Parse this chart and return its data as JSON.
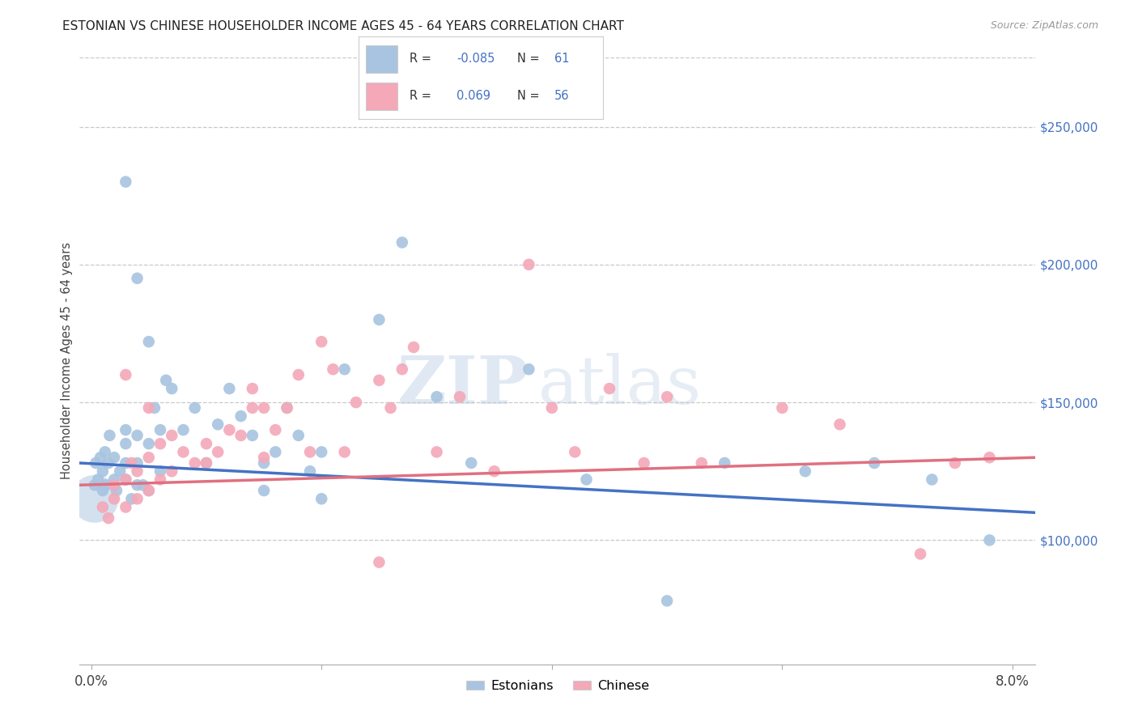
{
  "title": "ESTONIAN VS CHINESE HOUSEHOLDER INCOME AGES 45 - 64 YEARS CORRELATION CHART",
  "source": "Source: ZipAtlas.com",
  "ylabel": "Householder Income Ages 45 - 64 years",
  "xlim": [
    -0.001,
    0.082
  ],
  "ylim": [
    55000,
    275000
  ],
  "xticks": [
    0.0,
    0.02,
    0.04,
    0.06,
    0.08
  ],
  "xticklabels_show": [
    "0.0%",
    "8.0%"
  ],
  "xticklabels_pos": [
    0.0,
    0.08
  ],
  "yticks": [
    100000,
    150000,
    200000,
    250000
  ],
  "yticklabels": [
    "$100,000",
    "$150,000",
    "$200,000",
    "$250,000"
  ],
  "legend_r_est": "-0.085",
  "legend_n_est": "61",
  "legend_r_chi": "0.069",
  "legend_n_chi": "56",
  "estonian_color": "#a8c4e0",
  "chinese_color": "#f4a8b8",
  "line_color_est": "#4472c4",
  "line_color_chi": "#e07080",
  "grid_color": "#c8c8c8",
  "bg_color": "#ffffff",
  "watermark_zip": "ZIP",
  "watermark_atlas": "atlas",
  "estonian_x": [
    0.0003,
    0.0004,
    0.0006,
    0.0008,
    0.001,
    0.001,
    0.0012,
    0.0013,
    0.0015,
    0.0016,
    0.002,
    0.002,
    0.0022,
    0.0025,
    0.003,
    0.003,
    0.003,
    0.003,
    0.0035,
    0.004,
    0.004,
    0.004,
    0.0045,
    0.005,
    0.005,
    0.0055,
    0.006,
    0.006,
    0.0065,
    0.007,
    0.008,
    0.009,
    0.01,
    0.011,
    0.012,
    0.013,
    0.014,
    0.015,
    0.016,
    0.017,
    0.018,
    0.019,
    0.02,
    0.022,
    0.025,
    0.027,
    0.03,
    0.033,
    0.038,
    0.043,
    0.05,
    0.055,
    0.062,
    0.068,
    0.073,
    0.078,
    0.003,
    0.004,
    0.005,
    0.015,
    0.02
  ],
  "estonian_y": [
    120000,
    128000,
    122000,
    130000,
    118000,
    125000,
    132000,
    120000,
    128000,
    138000,
    122000,
    130000,
    118000,
    125000,
    122000,
    128000,
    135000,
    140000,
    115000,
    120000,
    128000,
    138000,
    120000,
    118000,
    135000,
    148000,
    125000,
    140000,
    158000,
    155000,
    140000,
    148000,
    128000,
    142000,
    155000,
    145000,
    138000,
    128000,
    132000,
    148000,
    138000,
    125000,
    132000,
    162000,
    180000,
    208000,
    152000,
    128000,
    162000,
    122000,
    78000,
    128000,
    125000,
    128000,
    122000,
    100000,
    230000,
    195000,
    172000,
    118000,
    115000
  ],
  "chinese_x": [
    0.001,
    0.0015,
    0.002,
    0.002,
    0.003,
    0.003,
    0.0035,
    0.004,
    0.004,
    0.005,
    0.005,
    0.006,
    0.006,
    0.007,
    0.008,
    0.009,
    0.01,
    0.011,
    0.012,
    0.013,
    0.014,
    0.014,
    0.015,
    0.016,
    0.017,
    0.018,
    0.019,
    0.02,
    0.021,
    0.022,
    0.023,
    0.025,
    0.026,
    0.027,
    0.028,
    0.03,
    0.032,
    0.035,
    0.038,
    0.04,
    0.042,
    0.045,
    0.048,
    0.05,
    0.053,
    0.06,
    0.065,
    0.072,
    0.075,
    0.003,
    0.005,
    0.007,
    0.01,
    0.015,
    0.025,
    0.078
  ],
  "chinese_y": [
    112000,
    108000,
    115000,
    120000,
    112000,
    122000,
    128000,
    115000,
    125000,
    118000,
    130000,
    122000,
    135000,
    125000,
    132000,
    128000,
    135000,
    132000,
    140000,
    138000,
    148000,
    155000,
    130000,
    140000,
    148000,
    160000,
    132000,
    172000,
    162000,
    132000,
    150000,
    158000,
    148000,
    162000,
    170000,
    132000,
    152000,
    125000,
    200000,
    148000,
    132000,
    155000,
    128000,
    152000,
    128000,
    148000,
    142000,
    95000,
    128000,
    160000,
    148000,
    138000,
    128000,
    148000,
    92000,
    130000
  ]
}
